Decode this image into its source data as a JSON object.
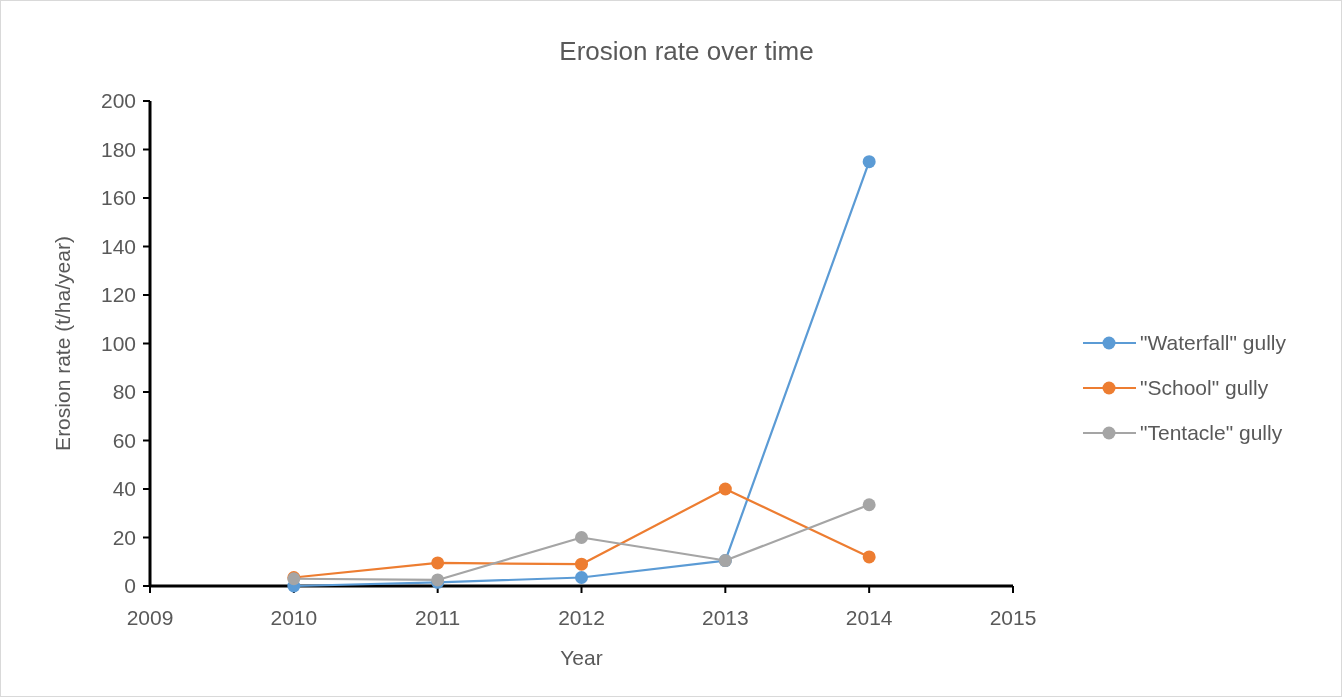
{
  "chart_data": {
    "type": "line",
    "title": "Erosion rate over time",
    "xlabel": "Year",
    "ylabel": "Erosion rate (t/ha/year)",
    "x": [
      2010,
      2011,
      2012,
      2013,
      2014
    ],
    "series": [
      {
        "name": "\"Waterfall\" gully",
        "color": "#5b9bd5",
        "values": [
          0,
          1.5,
          3.5,
          10.5,
          175
        ]
      },
      {
        "name": "\"School\" gully",
        "color": "#ed7d31",
        "values": [
          3.5,
          9.5,
          9,
          40,
          12
        ]
      },
      {
        "name": "\"Tentacle\" gully",
        "color": "#a5a5a5",
        "values": [
          3,
          2.5,
          20,
          10.5,
          33.5
        ]
      }
    ],
    "xlim": [
      2009,
      2015
    ],
    "xticks": [
      2009,
      2010,
      2011,
      2012,
      2013,
      2014,
      2015
    ],
    "ylim": [
      0,
      200
    ],
    "yticks": [
      0,
      20,
      40,
      60,
      80,
      100,
      120,
      140,
      160,
      180,
      200
    ],
    "grid": false,
    "legend": "right",
    "marker": "circle",
    "line_style": "solid"
  }
}
